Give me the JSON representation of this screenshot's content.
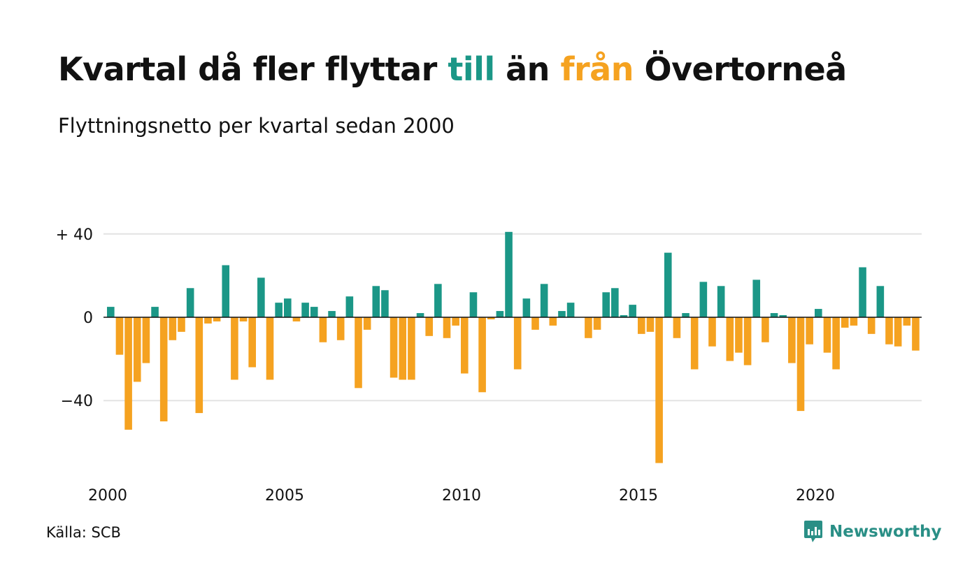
{
  "title": {
    "part1": "Kvartal då fler flyttar ",
    "part2": "till",
    "part3": " än ",
    "part4": "från",
    "part5": " Övertorneå"
  },
  "subtitle": "Flyttningsnetto per kvartal sedan 2000",
  "source": "Källa: SCB",
  "brand": {
    "name": "Newsworthy",
    "icon": "newsworthy-logo-icon"
  },
  "colors": {
    "positive": "#1b9787",
    "negative": "#f5a220",
    "grid": "#e3e3e3",
    "zero_line": "#111111"
  },
  "chart_data": {
    "type": "bar",
    "title": "Kvartal då fler flyttar till än från Övertorneå",
    "subtitle": "Flyttningsnetto per kvartal sedan 2000",
    "x_start": "2000-Q1",
    "x_tick_labels": [
      "2000",
      "2005",
      "2010",
      "2015",
      "2020"
    ],
    "y_tick_labels": [
      "+ 40",
      "0",
      "−40"
    ],
    "y_ticks": [
      40,
      0,
      -40
    ],
    "ylim": [
      -75,
      45
    ],
    "grid": true,
    "categories": [
      "2000-Q1",
      "2000-Q2",
      "2000-Q3",
      "2000-Q4",
      "2001-Q1",
      "2001-Q2",
      "2001-Q3",
      "2001-Q4",
      "2002-Q1",
      "2002-Q2",
      "2002-Q3",
      "2002-Q4",
      "2003-Q1",
      "2003-Q2",
      "2003-Q3",
      "2003-Q4",
      "2004-Q1",
      "2004-Q2",
      "2004-Q3",
      "2004-Q4",
      "2005-Q1",
      "2005-Q2",
      "2005-Q3",
      "2005-Q4",
      "2006-Q1",
      "2006-Q2",
      "2006-Q3",
      "2006-Q4",
      "2007-Q1",
      "2007-Q2",
      "2007-Q3",
      "2007-Q4",
      "2008-Q1",
      "2008-Q2",
      "2008-Q3",
      "2008-Q4",
      "2009-Q1",
      "2009-Q2",
      "2009-Q3",
      "2009-Q4",
      "2010-Q1",
      "2010-Q2",
      "2010-Q3",
      "2010-Q4",
      "2011-Q1",
      "2011-Q2",
      "2011-Q3",
      "2011-Q4",
      "2012-Q1",
      "2012-Q2",
      "2012-Q3",
      "2012-Q4",
      "2013-Q1",
      "2013-Q2",
      "2013-Q3",
      "2013-Q4",
      "2014-Q1",
      "2014-Q2",
      "2014-Q3",
      "2014-Q4",
      "2015-Q1",
      "2015-Q2",
      "2015-Q3",
      "2015-Q4",
      "2016-Q1",
      "2016-Q2",
      "2016-Q3",
      "2016-Q4",
      "2017-Q1",
      "2017-Q2",
      "2017-Q3",
      "2017-Q4",
      "2018-Q1",
      "2018-Q2",
      "2018-Q3",
      "2018-Q4",
      "2019-Q1",
      "2019-Q2",
      "2019-Q3",
      "2019-Q4",
      "2020-Q1",
      "2020-Q2",
      "2020-Q3",
      "2020-Q4",
      "2021-Q1",
      "2021-Q2",
      "2021-Q3",
      "2021-Q4",
      "2022-Q1",
      "2022-Q2",
      "2022-Q3",
      "2022-Q4",
      "2023-Q1"
    ],
    "values": [
      5,
      -18,
      -54,
      -31,
      -22,
      5,
      -50,
      -11,
      -7,
      14,
      -46,
      -3,
      -2,
      25,
      -30,
      -2,
      -24,
      19,
      -30,
      7,
      9,
      -2,
      7,
      5,
      -12,
      3,
      -11,
      10,
      -34,
      -6,
      15,
      13,
      -29,
      -30,
      -30,
      2,
      -9,
      16,
      -10,
      -4,
      -27,
      12,
      -36,
      -1,
      3,
      41,
      -25,
      9,
      -6,
      16,
      -4,
      3,
      7,
      0,
      -10,
      -6,
      12,
      14,
      1,
      6,
      -8,
      -7,
      -70,
      31,
      -10,
      2,
      -25,
      17,
      -14,
      15,
      -21,
      -17,
      -23,
      18,
      -12,
      2,
      1,
      -22,
      -45,
      -13,
      4,
      -17,
      -25,
      -5,
      -4,
      24,
      -8,
      15,
      -13,
      -14,
      -4,
      -16,
      0
    ]
  }
}
